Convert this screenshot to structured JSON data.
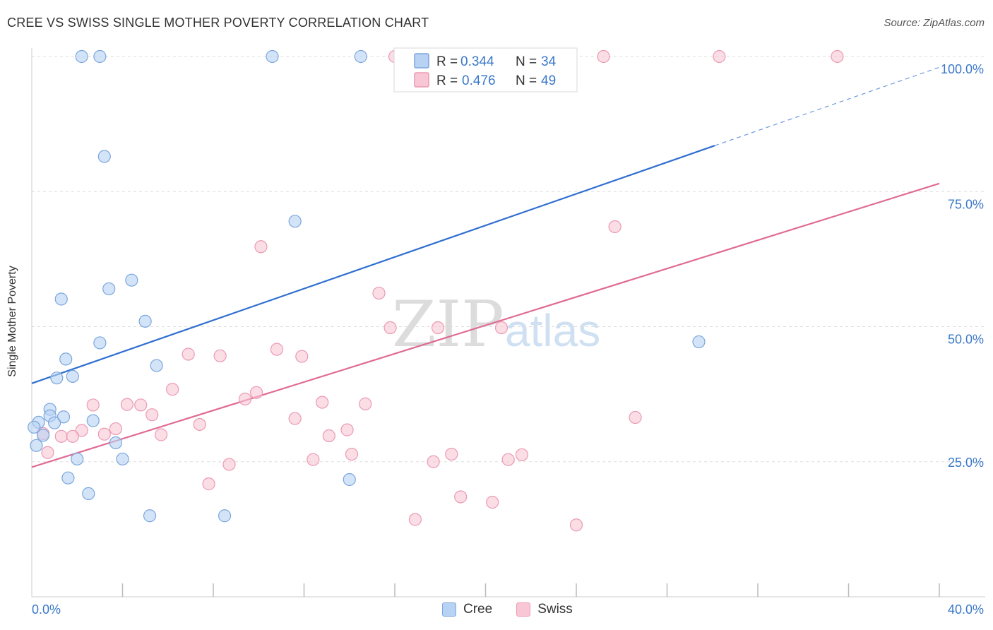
{
  "title": "CREE VS SWISS SINGLE MOTHER POVERTY CORRELATION CHART",
  "source": "Source: ZipAtlas.com",
  "watermark": {
    "zip": "ZIP",
    "atlas": "atlas"
  },
  "legend": {
    "r_label": "R =",
    "n_label": "N =",
    "cree": {
      "r": "0.344",
      "n": "34"
    },
    "swiss": {
      "r": "0.476",
      "n": "49"
    }
  },
  "bottom_legend": {
    "cree": "Cree",
    "swiss": "Swiss"
  },
  "colors": {
    "cree_fill": "#b8d2f4",
    "cree_stroke": "#7aa6dc",
    "cree_line": "#2f6fd0",
    "swiss_fill": "#f8c6d5",
    "swiss_stroke": "#eb9ab3",
    "swiss_line": "#e06a93",
    "tick_text": "#3a78c9"
  },
  "chart_data": {
    "type": "scatter",
    "ylabel": "Single Mother Poverty",
    "xlim": [
      0,
      40
    ],
    "ylim": [
      0,
      100
    ],
    "x_tick_labels": [
      "0.0%",
      "40.0%"
    ],
    "y_ticks": [
      25,
      50,
      75,
      100
    ],
    "y_tick_labels": [
      "25.0%",
      "50.0%",
      "75.0%",
      "100.0%"
    ],
    "grid": true,
    "legend_position": "top-center",
    "series": [
      {
        "name": "Cree",
        "r": 0.344,
        "n": 34,
        "trend": {
          "x0": 0,
          "y0": 39.5,
          "x1": 30.1,
          "y1": 83.5,
          "dash_x1": 40,
          "dash_y1": 98.0
        },
        "points": [
          [
            2.2,
            100
          ],
          [
            3.0,
            100
          ],
          [
            10.6,
            100
          ],
          [
            14.5,
            100
          ],
          [
            21.2,
            100
          ],
          [
            3.2,
            81.5
          ],
          [
            11.6,
            69.5
          ],
          [
            4.4,
            58.6
          ],
          [
            3.4,
            57.0
          ],
          [
            1.3,
            55.1
          ],
          [
            5.0,
            51.0
          ],
          [
            3.0,
            47.0
          ],
          [
            29.4,
            47.2
          ],
          [
            1.5,
            44.0
          ],
          [
            5.5,
            42.8
          ],
          [
            1.8,
            40.8
          ],
          [
            1.1,
            40.5
          ],
          [
            0.8,
            34.7
          ],
          [
            0.8,
            33.5
          ],
          [
            1.4,
            33.3
          ],
          [
            2.7,
            32.6
          ],
          [
            0.3,
            32.3
          ],
          [
            1.0,
            32.2
          ],
          [
            0.1,
            31.4
          ],
          [
            0.5,
            29.9
          ],
          [
            3.7,
            28.5
          ],
          [
            0.2,
            28.0
          ],
          [
            4.0,
            25.5
          ],
          [
            2.0,
            25.5
          ],
          [
            1.6,
            22.0
          ],
          [
            2.5,
            19.1
          ],
          [
            14.0,
            21.7
          ],
          [
            5.2,
            15.0
          ],
          [
            8.5,
            15.0
          ]
        ]
      },
      {
        "name": "Swiss",
        "r": 0.476,
        "n": 49,
        "trend": {
          "x0": 0,
          "y0": 24.0,
          "x1": 40,
          "y1": 76.5
        },
        "points": [
          [
            16.0,
            100
          ],
          [
            21.9,
            100
          ],
          [
            25.2,
            100
          ],
          [
            30.3,
            100
          ],
          [
            35.5,
            100
          ],
          [
            25.7,
            68.5
          ],
          [
            10.1,
            64.8
          ],
          [
            15.3,
            56.2
          ],
          [
            15.8,
            49.8
          ],
          [
            17.9,
            49.8
          ],
          [
            20.7,
            49.8
          ],
          [
            10.8,
            45.8
          ],
          [
            6.9,
            44.9
          ],
          [
            8.3,
            44.6
          ],
          [
            11.9,
            44.5
          ],
          [
            6.2,
            38.4
          ],
          [
            9.9,
            37.8
          ],
          [
            9.4,
            36.6
          ],
          [
            12.8,
            36.0
          ],
          [
            14.7,
            35.7
          ],
          [
            2.7,
            35.5
          ],
          [
            4.2,
            35.6
          ],
          [
            4.8,
            35.5
          ],
          [
            5.3,
            33.7
          ],
          [
            11.6,
            33.0
          ],
          [
            26.6,
            33.2
          ],
          [
            7.4,
            31.9
          ],
          [
            3.7,
            31.1
          ],
          [
            2.2,
            30.8
          ],
          [
            13.9,
            30.9
          ],
          [
            3.2,
            30.1
          ],
          [
            5.7,
            30.0
          ],
          [
            13.1,
            29.8
          ],
          [
            1.3,
            29.7
          ],
          [
            1.8,
            29.7
          ],
          [
            0.5,
            30.2
          ],
          [
            0.7,
            26.7
          ],
          [
            14.1,
            26.4
          ],
          [
            18.5,
            26.4
          ],
          [
            21.6,
            26.3
          ],
          [
            12.4,
            25.4
          ],
          [
            17.7,
            25.0
          ],
          [
            21.0,
            25.4
          ],
          [
            8.7,
            24.5
          ],
          [
            7.8,
            20.9
          ],
          [
            18.9,
            18.5
          ],
          [
            20.3,
            17.5
          ],
          [
            16.9,
            14.3
          ],
          [
            24.0,
            13.3
          ]
        ]
      }
    ]
  }
}
